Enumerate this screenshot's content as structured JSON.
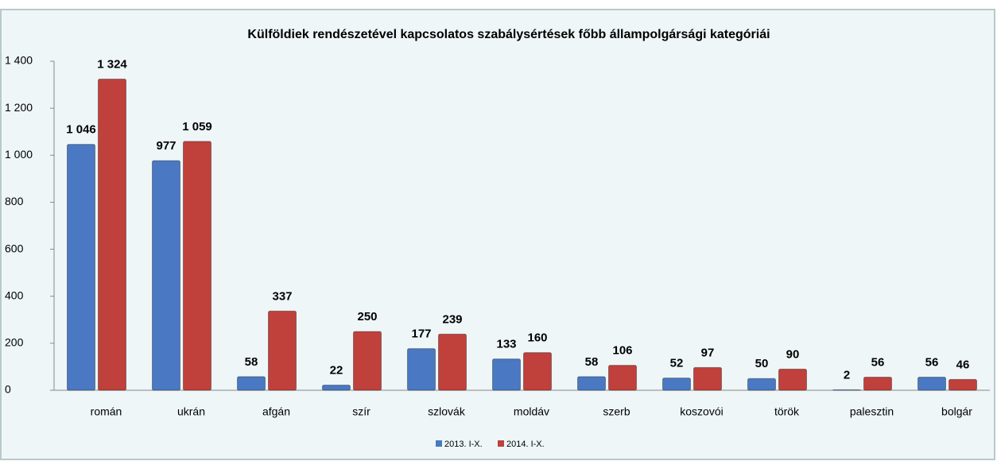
{
  "chart_data": {
    "type": "bar",
    "title": "Külföldiek rendészetével kapcsolatos szabálysértések főbb állampolgársági kategóriái",
    "categories": [
      "román",
      "ukrán",
      "afgán",
      "szír",
      "szlovák",
      "moldáv",
      "szerb",
      "koszovói",
      "török",
      "palesztin",
      "bolgár"
    ],
    "series": [
      {
        "name": "2013. I-X.",
        "color": "#4a78c2",
        "values": [
          1046,
          977,
          58,
          22,
          177,
          133,
          58,
          52,
          50,
          2,
          56
        ],
        "value_labels": [
          "1 046",
          "977",
          "58",
          "22",
          "177",
          "133",
          "58",
          "52",
          "50",
          "2",
          "56"
        ]
      },
      {
        "name": "2014. I-X.",
        "color": "#c0403c",
        "values": [
          1324,
          1059,
          337,
          250,
          239,
          160,
          106,
          97,
          90,
          56,
          46
        ],
        "value_labels": [
          "1 324",
          "1 059",
          "337",
          "250",
          "239",
          "160",
          "106",
          "97",
          "90",
          "56",
          "46"
        ]
      }
    ],
    "ylim": [
      0,
      1400
    ],
    "yticks": [
      0,
      200,
      400,
      600,
      800,
      {
        "value": 1000,
        "label": "1 000"
      },
      {
        "value": 1200,
        "label": "1 200"
      },
      {
        "value": 1400,
        "label": "1 400"
      }
    ],
    "grid": false,
    "legend": "bottom"
  }
}
